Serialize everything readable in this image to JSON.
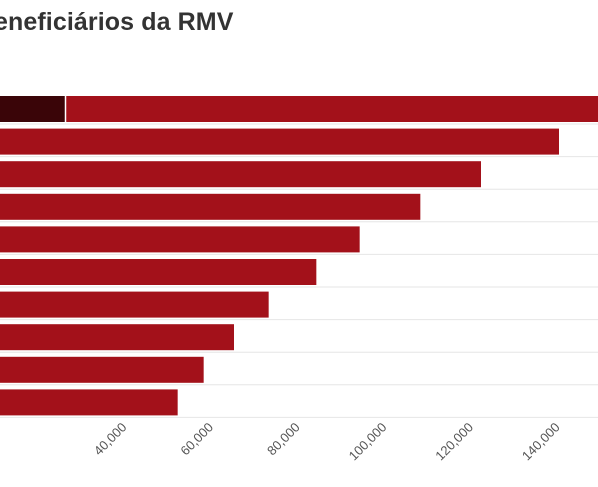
{
  "colors": {
    "bar": "#a3111a",
    "highlight": "#3a0508",
    "grid": "#e6e6e6",
    "title": "#333333",
    "tick": "#555555"
  },
  "chart_data": {
    "type": "bar",
    "orientation": "horizontal",
    "title": "eneficiários da RMV",
    "xlabel": "",
    "ylabel": "",
    "xlim": [
      12000,
      150000
    ],
    "xticks": [
      40000,
      60000,
      80000,
      100000,
      120000,
      140000
    ],
    "xtick_labels": [
      "40,000",
      "60,000",
      "80,000",
      "100,000",
      "120,000",
      "140,000"
    ],
    "values": [
      156000,
      141000,
      123000,
      109000,
      95000,
      85000,
      74000,
      66000,
      59000,
      53000
    ],
    "highlight_segment": {
      "bar_index": 0,
      "value": 27000
    },
    "grid": true,
    "legend": "none"
  }
}
